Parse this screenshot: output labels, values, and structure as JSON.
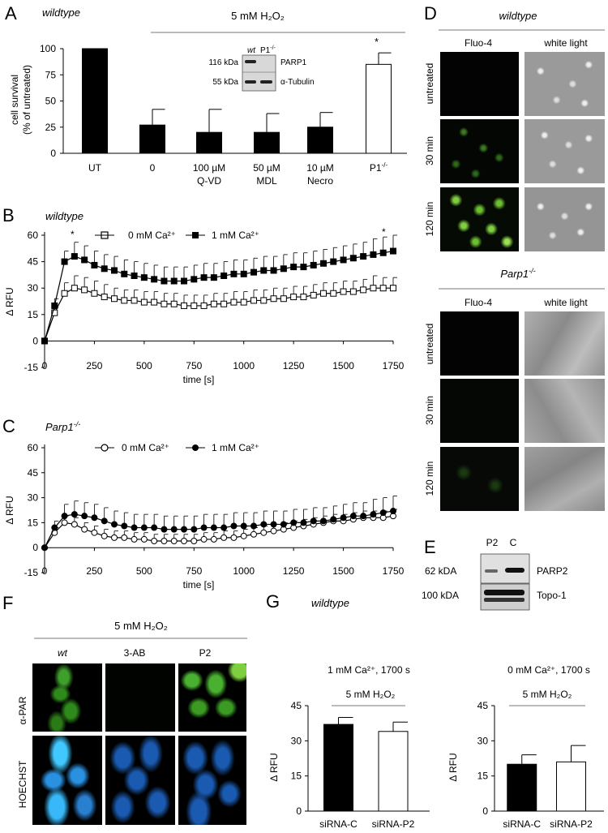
{
  "panel_letters": {
    "A": "A",
    "B": "B",
    "C": "C",
    "D": "D",
    "E": "E",
    "F": "F",
    "G": "G"
  },
  "panelA": {
    "genotype": "wildtype",
    "treatment": "5 mM H₂O₂",
    "ylabel_line1": "cell survival",
    "ylabel_line2": "(% of untreated)",
    "yticks": [
      "0",
      "25",
      "50",
      "75",
      "100"
    ],
    "categories": [
      {
        "line1": "UT",
        "line2": ""
      },
      {
        "line1": "0",
        "line2": ""
      },
      {
        "line1": "100 µM",
        "line2": "Q-VD"
      },
      {
        "line1": "50 µM",
        "line2": "MDL"
      },
      {
        "line1": "10 µM",
        "line2": "Necro"
      },
      {
        "line1": "P1",
        "sup": "-/-",
        "line2": ""
      }
    ],
    "star": "*",
    "inset": {
      "lanes": [
        "wt",
        "P1-/-"
      ],
      "rows": [
        {
          "size": "116 kDa",
          "protein": "PARP1"
        },
        {
          "size": "55 kDa",
          "protein": "α-Tubulin"
        }
      ]
    }
  },
  "panelB": {
    "genotype": "wildtype",
    "ylabel": "Δ RFU",
    "xlabel": "time [s]",
    "legend": [
      "0 mM Ca²⁺",
      "1 mM Ca²⁺"
    ],
    "xticks": [
      "0",
      "250",
      "500",
      "750",
      "1000",
      "1250",
      "1500",
      "1750"
    ],
    "yticks": [
      "-15",
      "0",
      "15",
      "30",
      "45",
      "60"
    ],
    "star": "*"
  },
  "panelC": {
    "genotype": "Parp1-/-",
    "ylabel": "Δ RFU",
    "xlabel": "time [s]",
    "legend": [
      "0 mM Ca²⁺",
      "1 mM Ca²⁺"
    ],
    "xticks": [
      "0",
      "250",
      "500",
      "750",
      "1000",
      "1250",
      "1500",
      "1750"
    ],
    "yticks": [
      "-15",
      "0",
      "15",
      "30",
      "45",
      "60"
    ]
  },
  "panelD": {
    "wt_title": "wildtype",
    "ko_title": "Parp1-/-",
    "col_fluo": "Fluo-4",
    "col_white": "white light",
    "rows": [
      "untreated",
      "30 min",
      "120 min"
    ]
  },
  "panelE": {
    "lanes": [
      "P2",
      "C"
    ],
    "rows": [
      {
        "size": "62 kDA",
        "protein": "PARP2"
      },
      {
        "size": "100 kDA",
        "protein": "Topo-1"
      }
    ]
  },
  "panelF": {
    "treatment": "5 mM H₂O₂",
    "columns": [
      "wt",
      "3-AB",
      "P2"
    ],
    "rows": [
      "α-PAR",
      "HOECHST"
    ]
  },
  "panelG": {
    "genotype": "wildtype",
    "left_condition": "1 mM Ca²⁺, 1700 s",
    "right_condition": "0 mM Ca²⁺, 1700 s",
    "treatment": "5 mM H₂O₂",
    "ylabel": "Δ RFU",
    "yticks": [
      "0",
      "15",
      "30",
      "45"
    ],
    "categories": [
      "siRNA-C",
      "siRNA-P2"
    ]
  },
  "chart_data": [
    {
      "type": "bar",
      "panel": "A",
      "categories": [
        "UT",
        "0",
        "100 µM Q-VD",
        "50 µM MDL",
        "10 µM Necro",
        "P1-/-"
      ],
      "values": [
        100,
        27,
        20,
        20,
        25,
        85
      ],
      "errors": [
        0,
        15,
        22,
        18,
        14,
        11
      ],
      "ylabel": "cell survival (% of untreated)",
      "ylim": [
        0,
        100
      ]
    },
    {
      "type": "line",
      "panel": "B",
      "xlabel": "time [s]",
      "ylabel": "Δ RFU",
      "xlim": [
        0,
        1750
      ],
      "ylim": [
        -15,
        60
      ],
      "series": [
        {
          "name": "0 mM Ca²⁺",
          "x": [
            0,
            50,
            100,
            150,
            200,
            250,
            300,
            350,
            400,
            450,
            500,
            550,
            600,
            650,
            700,
            750,
            800,
            850,
            900,
            950,
            1000,
            1050,
            1100,
            1150,
            1200,
            1250,
            1300,
            1350,
            1400,
            1450,
            1500,
            1550,
            1600,
            1650,
            1700,
            1750
          ],
          "y": [
            0,
            16,
            27,
            30,
            29,
            27,
            25,
            24,
            23,
            23,
            22,
            22,
            21,
            21,
            20,
            20,
            20,
            21,
            21,
            22,
            22,
            23,
            23,
            24,
            24,
            25,
            25,
            26,
            27,
            27,
            28,
            28,
            29,
            30,
            30,
            30
          ],
          "err": [
            0,
            3,
            6,
            7,
            7,
            7,
            7,
            6,
            6,
            6,
            6,
            6,
            6,
            6,
            6,
            6,
            6,
            6,
            6,
            6,
            6,
            6,
            6,
            6,
            6,
            6,
            6,
            6,
            6,
            6,
            6,
            6,
            6,
            7,
            6,
            6
          ]
        },
        {
          "name": "1 mM Ca²⁺",
          "x": [
            0,
            50,
            100,
            150,
            200,
            250,
            300,
            350,
            400,
            450,
            500,
            550,
            600,
            650,
            700,
            750,
            800,
            850,
            900,
            950,
            1000,
            1050,
            1100,
            1150,
            1200,
            1250,
            1300,
            1350,
            1400,
            1450,
            1500,
            1550,
            1600,
            1650,
            1700,
            1750
          ],
          "y": [
            0,
            20,
            45,
            48,
            46,
            43,
            41,
            40,
            38,
            37,
            36,
            35,
            34,
            34,
            34,
            35,
            36,
            36,
            37,
            38,
            38,
            39,
            40,
            40,
            41,
            42,
            42,
            43,
            44,
            45,
            46,
            47,
            48,
            49,
            50,
            51
          ],
          "err": [
            0,
            4,
            6,
            8,
            8,
            8,
            8,
            8,
            8,
            8,
            8,
            8,
            8,
            8,
            8,
            8,
            8,
            8,
            8,
            8,
            8,
            8,
            8,
            8,
            8,
            8,
            8,
            8,
            8,
            8,
            8,
            8,
            8,
            9,
            9,
            9
          ]
        }
      ]
    },
    {
      "type": "line",
      "panel": "C",
      "xlabel": "time [s]",
      "ylabel": "Δ RFU",
      "xlim": [
        0,
        1750
      ],
      "ylim": [
        -15,
        60
      ],
      "series": [
        {
          "name": "0 mM Ca²⁺",
          "x": [
            0,
            50,
            100,
            150,
            200,
            250,
            300,
            350,
            400,
            450,
            500,
            550,
            600,
            650,
            700,
            750,
            800,
            850,
            900,
            950,
            1000,
            1050,
            1100,
            1150,
            1200,
            1250,
            1300,
            1350,
            1400,
            1450,
            1500,
            1550,
            1600,
            1650,
            1700,
            1750
          ],
          "y": [
            0,
            9,
            15,
            14,
            11,
            9,
            7,
            6,
            6,
            5,
            5,
            4,
            4,
            4,
            4,
            4,
            5,
            5,
            6,
            6,
            7,
            8,
            9,
            10,
            11,
            12,
            13,
            14,
            15,
            16,
            16,
            17,
            18,
            18,
            18,
            19
          ],
          "err": [
            0,
            3,
            4,
            4,
            4,
            4,
            4,
            4,
            4,
            4,
            4,
            4,
            4,
            4,
            4,
            4,
            4,
            4,
            4,
            4,
            4,
            4,
            4,
            4,
            4,
            4,
            4,
            4,
            4,
            4,
            4,
            4,
            4,
            4,
            4,
            4
          ]
        },
        {
          "name": "1 mM Ca²⁺",
          "x": [
            0,
            50,
            100,
            150,
            200,
            250,
            300,
            350,
            400,
            450,
            500,
            550,
            600,
            650,
            700,
            750,
            800,
            850,
            900,
            950,
            1000,
            1050,
            1100,
            1150,
            1200,
            1250,
            1300,
            1350,
            1400,
            1450,
            1500,
            1550,
            1600,
            1650,
            1700,
            1750
          ],
          "y": [
            0,
            12,
            19,
            20,
            19,
            18,
            16,
            14,
            13,
            12,
            12,
            12,
            11,
            11,
            11,
            11,
            12,
            12,
            12,
            13,
            13,
            13,
            14,
            14,
            14,
            15,
            15,
            16,
            16,
            17,
            18,
            19,
            19,
            20,
            21,
            22
          ],
          "err": [
            0,
            4,
            7,
            8,
            8,
            8,
            8,
            8,
            8,
            8,
            8,
            8,
            8,
            8,
            8,
            8,
            8,
            8,
            8,
            8,
            8,
            8,
            8,
            8,
            8,
            8,
            8,
            8,
            8,
            8,
            8,
            8,
            8,
            9,
            9,
            9
          ]
        }
      ]
    },
    {
      "type": "bar",
      "panel": "G-left",
      "categories": [
        "siRNA-C",
        "siRNA-P2"
      ],
      "values": [
        37,
        34
      ],
      "errors": [
        3,
        4
      ],
      "ylabel": "Δ RFU",
      "ylim": [
        0,
        45
      ]
    },
    {
      "type": "bar",
      "panel": "G-right",
      "categories": [
        "siRNA-C",
        "siRNA-P2"
      ],
      "values": [
        20,
        21
      ],
      "errors": [
        4,
        7
      ],
      "ylabel": "Δ RFU",
      "ylim": [
        0,
        45
      ]
    }
  ]
}
